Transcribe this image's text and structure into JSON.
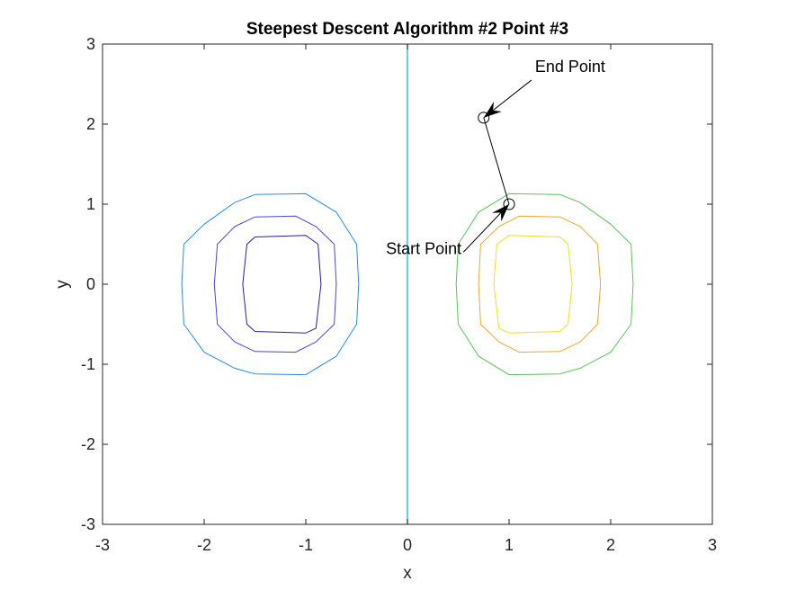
{
  "chart_data": {
    "type": "line",
    "title": "Steepest Descent Algorithm #2 Point #3",
    "xlabel": "x",
    "ylabel": "y",
    "xlim": [
      -3,
      3
    ],
    "ylim": [
      -3,
      3
    ],
    "xticks": [
      -3,
      -2,
      -1,
      0,
      1,
      2,
      3
    ],
    "yticks": [
      -3,
      -2,
      -1,
      0,
      1,
      2,
      3
    ],
    "xtick_labels": [
      "-3",
      "-2",
      "-1",
      "0",
      "1",
      "2",
      "3"
    ],
    "ytick_labels": [
      "-3",
      "-2",
      "-1",
      "0",
      "1",
      "2",
      "3"
    ],
    "grid": false,
    "contours": [
      {
        "color": "#2b8fe0",
        "points": [
          [
            -1.5,
            1.12
          ],
          [
            -1.0,
            1.13
          ],
          [
            -0.7,
            0.9
          ],
          [
            -0.5,
            0.5
          ],
          [
            -0.48,
            0.0
          ],
          [
            -0.5,
            -0.5
          ],
          [
            -0.7,
            -0.9
          ],
          [
            -1.0,
            -1.13
          ],
          [
            -1.5,
            -1.12
          ],
          [
            -1.7,
            -1.05
          ],
          [
            -2.0,
            -0.85
          ],
          [
            -2.2,
            -0.5
          ],
          [
            -2.22,
            0.0
          ],
          [
            -2.2,
            0.5
          ],
          [
            -2.0,
            0.75
          ],
          [
            -1.7,
            1.02
          ],
          [
            -1.5,
            1.12
          ]
        ]
      },
      {
        "color": "#4848d8",
        "points": [
          [
            -1.5,
            0.84
          ],
          [
            -1.1,
            0.85
          ],
          [
            -0.9,
            0.72
          ],
          [
            -0.72,
            0.5
          ],
          [
            -0.7,
            0.0
          ],
          [
            -0.72,
            -0.5
          ],
          [
            -0.9,
            -0.72
          ],
          [
            -1.1,
            -0.85
          ],
          [
            -1.5,
            -0.84
          ],
          [
            -1.7,
            -0.72
          ],
          [
            -1.87,
            -0.5
          ],
          [
            -1.9,
            0.0
          ],
          [
            -1.87,
            0.5
          ],
          [
            -1.7,
            0.72
          ],
          [
            -1.5,
            0.84
          ]
        ]
      },
      {
        "color": "#2c1c9c",
        "points": [
          [
            -1.5,
            0.59
          ],
          [
            -1.0,
            0.61
          ],
          [
            -0.88,
            0.5
          ],
          [
            -0.85,
            0.0
          ],
          [
            -0.9,
            -0.55
          ],
          [
            -1.0,
            -0.61
          ],
          [
            -1.5,
            -0.59
          ],
          [
            -1.58,
            -0.5
          ],
          [
            -1.62,
            0.0
          ],
          [
            -1.58,
            0.5
          ],
          [
            -1.5,
            0.59
          ]
        ]
      },
      {
        "color": "#5cc45c",
        "points": [
          [
            1.0,
            1.13
          ],
          [
            1.5,
            1.12
          ],
          [
            1.7,
            1.02
          ],
          [
            2.0,
            0.75
          ],
          [
            2.2,
            0.5
          ],
          [
            2.22,
            0.0
          ],
          [
            2.2,
            -0.5
          ],
          [
            2.0,
            -0.85
          ],
          [
            1.7,
            -1.05
          ],
          [
            1.5,
            -1.12
          ],
          [
            1.0,
            -1.13
          ],
          [
            0.7,
            -0.9
          ],
          [
            0.5,
            -0.5
          ],
          [
            0.48,
            0.0
          ],
          [
            0.5,
            0.5
          ],
          [
            0.7,
            0.9
          ],
          [
            1.0,
            1.13
          ]
        ]
      },
      {
        "color": "#f0a830",
        "points": [
          [
            1.1,
            0.85
          ],
          [
            1.5,
            0.84
          ],
          [
            1.7,
            0.72
          ],
          [
            1.87,
            0.5
          ],
          [
            1.9,
            0.0
          ],
          [
            1.87,
            -0.5
          ],
          [
            1.7,
            -0.72
          ],
          [
            1.5,
            -0.84
          ],
          [
            1.1,
            -0.85
          ],
          [
            0.9,
            -0.72
          ],
          [
            0.72,
            -0.5
          ],
          [
            0.7,
            0.0
          ],
          [
            0.72,
            0.5
          ],
          [
            0.9,
            0.72
          ],
          [
            1.1,
            0.85
          ]
        ]
      },
      {
        "color": "#f0e020",
        "points": [
          [
            1.0,
            0.61
          ],
          [
            1.5,
            0.59
          ],
          [
            1.58,
            0.5
          ],
          [
            1.62,
            0.0
          ],
          [
            1.58,
            -0.5
          ],
          [
            1.5,
            -0.59
          ],
          [
            1.0,
            -0.61
          ],
          [
            0.9,
            -0.55
          ],
          [
            0.85,
            0.0
          ],
          [
            0.88,
            0.5
          ],
          [
            1.0,
            0.61
          ]
        ]
      }
    ],
    "zero_level_line": {
      "color": "#2ec4c4",
      "points": [
        [
          0.0,
          -3.0
        ],
        [
          0.0,
          3.0
        ]
      ]
    },
    "path": {
      "color": "#000000",
      "points": [
        [
          1.0,
          1.0
        ],
        [
          0.75,
          2.08
        ]
      ]
    },
    "markers": [
      {
        "x": 1.0,
        "y": 1.0,
        "symbol": "circle"
      },
      {
        "x": 0.75,
        "y": 2.08,
        "symbol": "circle"
      }
    ],
    "annotations": [
      {
        "text": "Start Point",
        "tail": [
          0.55,
          0.4
        ],
        "head": [
          1.0,
          1.0
        ]
      },
      {
        "text": "End Point",
        "tail": [
          1.22,
          2.55
        ],
        "head": [
          0.75,
          2.08
        ]
      }
    ]
  }
}
